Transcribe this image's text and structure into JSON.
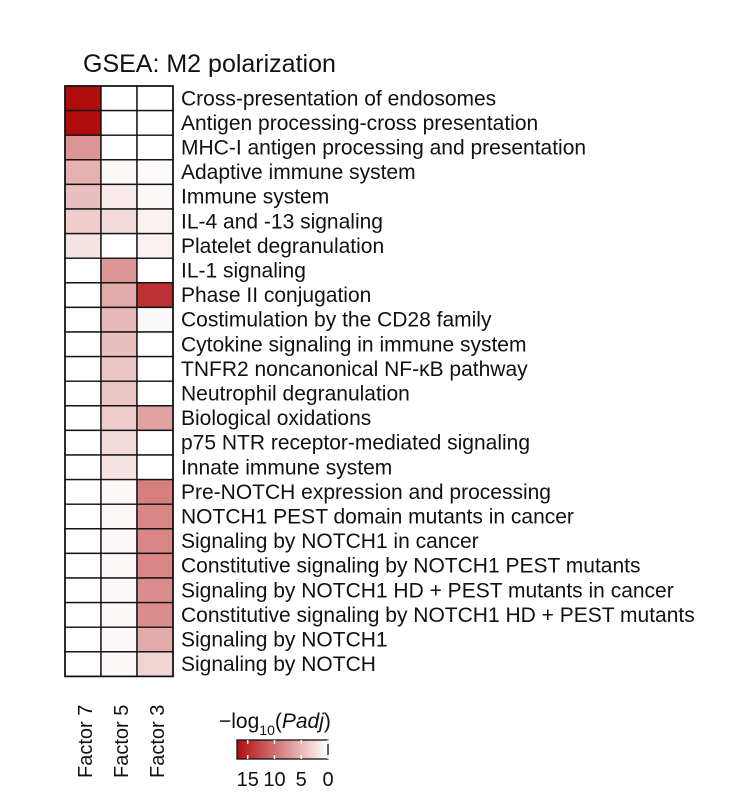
{
  "chart_data": {
    "type": "heatmap",
    "title": "GSEA: M2 polarization",
    "columns": [
      "Factor 7",
      "Factor 5",
      "Factor 3"
    ],
    "rows": [
      "Cross-presentation of endosomes",
      "Antigen processing-cross presentation",
      "MHC-I antigen processing and presentation",
      "Adaptive immune system",
      "Immune system",
      "IL-4 and -13 signaling",
      "Platelet degranulation",
      "IL-1 signaling",
      "Phase II conjugation",
      "Costimulation by the CD28 family",
      "Cytokine signaling in immune system",
      "TNFR2 noncanonical NF-κB pathway",
      "Neutrophil degranulation",
      "Biological oxidations",
      "p75 NTR receptor-mediated signaling",
      "Innate immune system",
      "Pre-NOTCH expression and processing",
      "NOTCH1 PEST domain mutants in cancer",
      "Signaling by NOTCH1 in cancer",
      "Constitutive signaling by NOTCH1 PEST mutants",
      "Signaling by NOTCH1 HD + PEST mutants in cancer",
      "Constitutive signaling by NOTCH1 HD + PEST mutants",
      "Signaling by NOTCH1",
      "Signaling by NOTCH"
    ],
    "values": [
      [
        17,
        0,
        0
      ],
      [
        17,
        0,
        0
      ],
      [
        7.5,
        0,
        0
      ],
      [
        5.5,
        0.5,
        0.3
      ],
      [
        4.5,
        1.5,
        0.5
      ],
      [
        3.5,
        2.5,
        1
      ],
      [
        2,
        0,
        1
      ],
      [
        0,
        7.5,
        0
      ],
      [
        0,
        6,
        14.5
      ],
      [
        0,
        5,
        0.5
      ],
      [
        0,
        4.5,
        0
      ],
      [
        0,
        4,
        0
      ],
      [
        0,
        4,
        0
      ],
      [
        0,
        3.5,
        6.5
      ],
      [
        0,
        2.5,
        0
      ],
      [
        0,
        2,
        0
      ],
      [
        0,
        0.5,
        9
      ],
      [
        0,
        0.5,
        8.5
      ],
      [
        0,
        0.5,
        8.5
      ],
      [
        0,
        0.5,
        8.5
      ],
      [
        0,
        0.5,
        8
      ],
      [
        0,
        0.5,
        8
      ],
      [
        0,
        0.5,
        6
      ],
      [
        0,
        0.5,
        3
      ]
    ],
    "colorbar": {
      "title_prefix": "−log",
      "title_sub": "10",
      "title_open": "(",
      "title_italic": "Padj",
      "title_close": ")",
      "min": 0,
      "max": 17,
      "ticks": [
        15,
        10,
        5,
        0
      ],
      "tick_labels": [
        "15",
        "10",
        "5",
        "0"
      ],
      "low_color": "#ffffff",
      "high_color": "#b00d0d"
    },
    "grid": true
  }
}
